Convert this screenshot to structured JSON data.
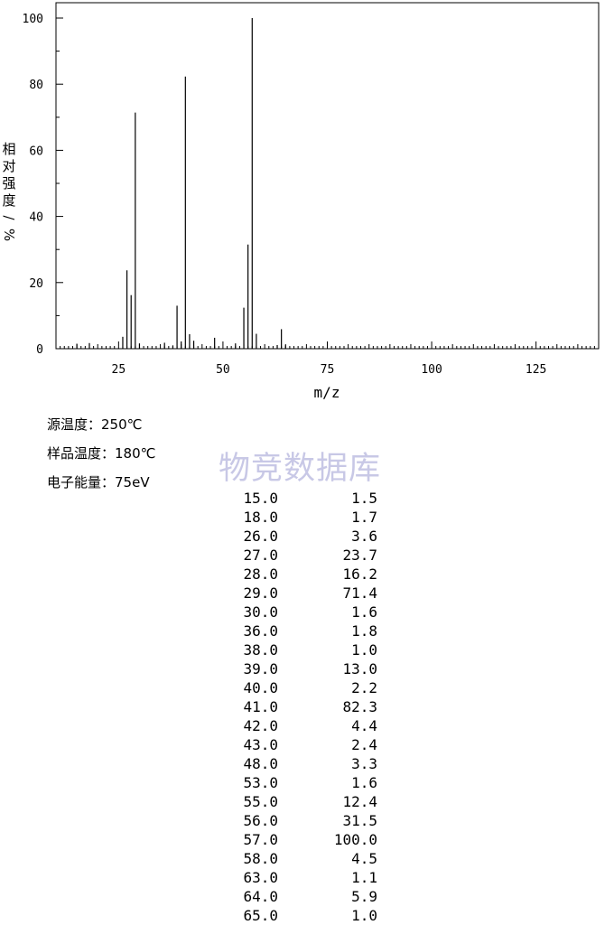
{
  "chart_data": {
    "type": "bar",
    "xlabel": "m/z",
    "ylabel": "相对强度/%",
    "xlim": [
      10,
      140
    ],
    "ylim": [
      0,
      100
    ],
    "x_ticks": [
      25,
      50,
      75,
      100,
      125
    ],
    "y_ticks": [
      0,
      20,
      40,
      60,
      80,
      100
    ],
    "grid": false,
    "x": [
      15,
      18,
      26,
      27,
      28,
      29,
      30,
      36,
      38,
      39,
      40,
      41,
      42,
      43,
      48,
      53,
      55,
      56,
      57,
      58,
      63,
      64,
      65
    ],
    "values": [
      1.5,
      1.7,
      3.6,
      23.7,
      16.2,
      71.4,
      1.6,
      1.8,
      1.0,
      13.0,
      2.2,
      82.3,
      4.4,
      2.4,
      3.3,
      1.6,
      12.4,
      31.5,
      100.0,
      4.5,
      1.1,
      5.9,
      1.0
    ]
  },
  "conditions": {
    "source_temp": "源温度：250℃",
    "sample_temp": "样品温度：180℃",
    "electron_energy": "电子能量：75eV"
  },
  "watermark": "物竞数据库",
  "peak_table": [
    {
      "mz": "15.0",
      "abundance": "1.5"
    },
    {
      "mz": "18.0",
      "abundance": "1.7"
    },
    {
      "mz": "26.0",
      "abundance": "3.6"
    },
    {
      "mz": "27.0",
      "abundance": "23.7"
    },
    {
      "mz": "28.0",
      "abundance": "16.2"
    },
    {
      "mz": "29.0",
      "abundance": "71.4"
    },
    {
      "mz": "30.0",
      "abundance": "1.6"
    },
    {
      "mz": "36.0",
      "abundance": "1.8"
    },
    {
      "mz": "38.0",
      "abundance": "1.0"
    },
    {
      "mz": "39.0",
      "abundance": "13.0"
    },
    {
      "mz": "40.0",
      "abundance": "2.2"
    },
    {
      "mz": "41.0",
      "abundance": "82.3"
    },
    {
      "mz": "42.0",
      "abundance": "4.4"
    },
    {
      "mz": "43.0",
      "abundance": "2.4"
    },
    {
      "mz": "48.0",
      "abundance": "3.3"
    },
    {
      "mz": "53.0",
      "abundance": "1.6"
    },
    {
      "mz": "55.0",
      "abundance": "12.4"
    },
    {
      "mz": "56.0",
      "abundance": "31.5"
    },
    {
      "mz": "57.0",
      "abundance": "100.0"
    },
    {
      "mz": "58.0",
      "abundance": "4.5"
    },
    {
      "mz": "63.0",
      "abundance": "1.1"
    },
    {
      "mz": "64.0",
      "abundance": "5.9"
    },
    {
      "mz": "65.0",
      "abundance": "1.0"
    }
  ]
}
